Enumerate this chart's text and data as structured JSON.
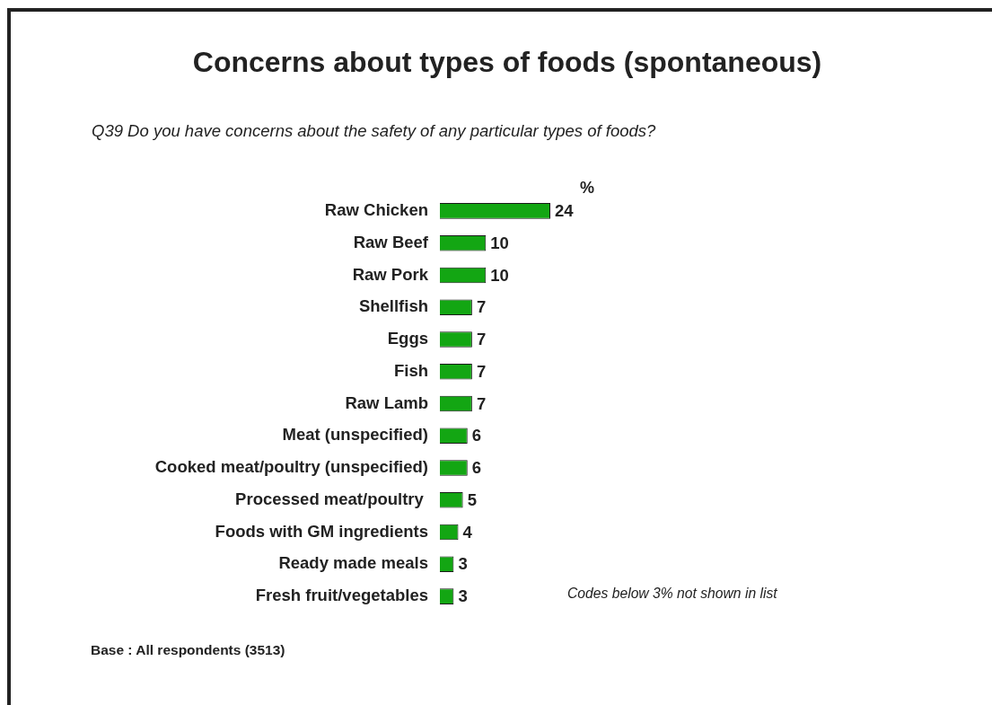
{
  "chart_data": {
    "type": "bar",
    "orientation": "horizontal",
    "title": "Concerns about types of foods (spontaneous)",
    "subtitle": "Q39 Do you have concerns about the safety of any particular types of foods?",
    "xlabel": "%",
    "categories": [
      "Raw Chicken",
      "Raw Beef",
      "Raw Pork",
      "Shellfish",
      "Eggs",
      "Fish",
      "Raw Lamb",
      "Meat (unspecified)",
      "Cooked meat/poultry (unspecified)",
      "Processed meat/poultry ",
      "Foods with GM ingredients",
      "Ready made meals",
      "Fresh fruit/vegetables"
    ],
    "values": [
      24,
      10,
      10,
      7,
      7,
      7,
      7,
      6,
      6,
      5,
      4,
      3,
      3
    ],
    "color": "#13a613",
    "data_labels": true,
    "annotations": [
      "Codes below 3% not shown in list",
      "Base : All respondents (3513)"
    ]
  }
}
